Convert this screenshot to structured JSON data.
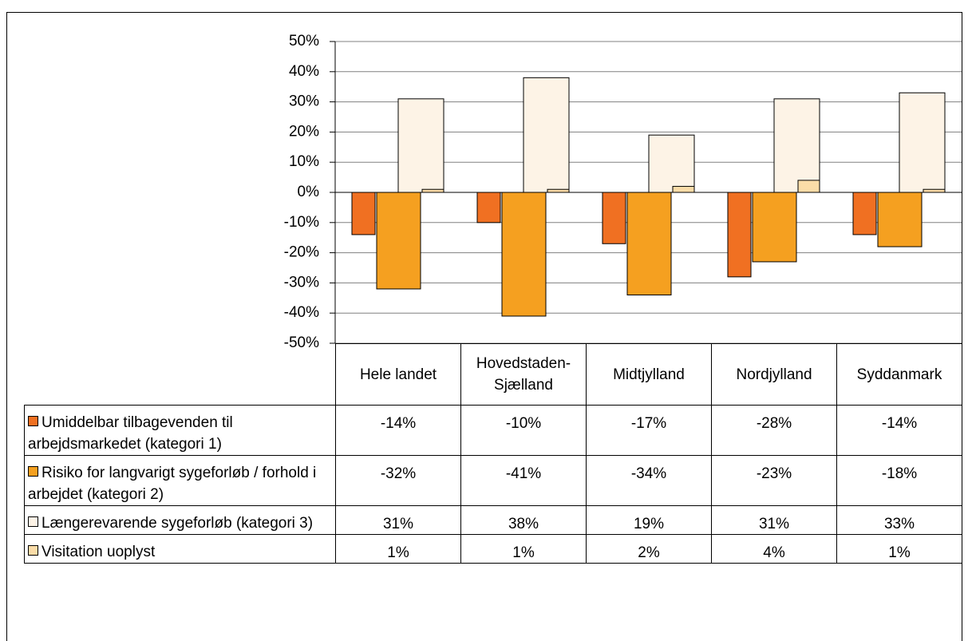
{
  "chart_data": {
    "type": "bar",
    "categories": [
      "Hele landet",
      "Hovedstaden-Sjælland",
      "Midtjylland",
      "Nordjylland",
      "Syddanmark"
    ],
    "series": [
      {
        "name": "Umiddelbar tilbagevenden til arbejdsmarkedet (kategori 1)",
        "color": "#f07022",
        "values": [
          -14,
          -10,
          -17,
          -28,
          -14
        ],
        "value_labels": [
          "-14%",
          "-10%",
          "-17%",
          "-28%",
          "-14%"
        ]
      },
      {
        "name": "Risiko for langvarigt sygeforløb / forhold i arbejdet (kategori 2)",
        "color": "#f5a020",
        "values": [
          -32,
          -41,
          -34,
          -23,
          -18
        ],
        "value_labels": [
          "-32%",
          "-41%",
          "-34%",
          "-23%",
          "-18%"
        ]
      },
      {
        "name": "Længerevarende sygeforløb (kategori 3)",
        "color": "#fdf3e6",
        "values": [
          31,
          38,
          19,
          31,
          33
        ],
        "value_labels": [
          "31%",
          "38%",
          "19%",
          "31%",
          "33%"
        ]
      },
      {
        "name": "Visitation uoplyst",
        "color": "#fbdca8",
        "values": [
          1,
          1,
          2,
          4,
          1
        ],
        "value_labels": [
          "1%",
          "1%",
          "2%",
          "4%",
          "1%"
        ]
      }
    ],
    "ylim": [
      -50,
      50
    ],
    "yticks": [
      {
        "value": -50,
        "label": "-50%"
      },
      {
        "value": -40,
        "label": "-40%"
      },
      {
        "value": -30,
        "label": "-30%"
      },
      {
        "value": -20,
        "label": "-20%"
      },
      {
        "value": -10,
        "label": "-10%"
      },
      {
        "value": 0,
        "label": "0%"
      },
      {
        "value": 10,
        "label": "10%"
      },
      {
        "value": 20,
        "label": "20%"
      },
      {
        "value": 30,
        "label": "30%"
      },
      {
        "value": 40,
        "label": "40%"
      },
      {
        "value": 50,
        "label": "50%"
      }
    ],
    "grid": true
  }
}
